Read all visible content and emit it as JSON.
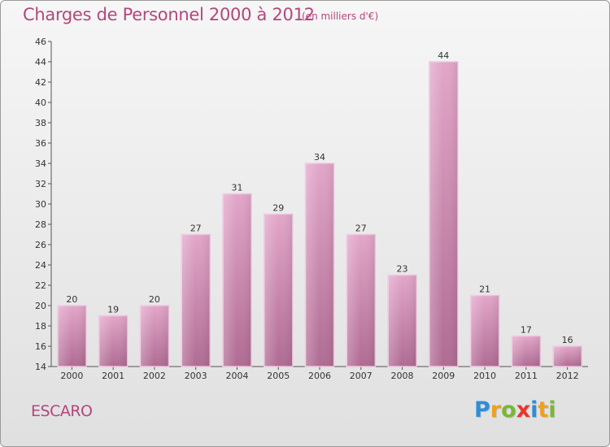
{
  "title": "Charges de Personnel 2000 à 2012",
  "subtitle": "(en milliers d'€)",
  "commune": "ESCARO",
  "logo": {
    "letters": [
      "P",
      "r",
      "o",
      "x",
      "i",
      "t",
      "i"
    ],
    "colors": [
      "#2b8ed8",
      "#f0a01e",
      "#79b833",
      "#e8352e",
      "#2b8ed8",
      "#f0a01e",
      "#79b833"
    ]
  },
  "colors": {
    "bar": "#c873a4",
    "accent": "#b3477d"
  },
  "chart_data": {
    "type": "bar",
    "categories": [
      "2000",
      "2001",
      "2002",
      "2003",
      "2004",
      "2005",
      "2006",
      "2007",
      "2008",
      "2009",
      "2010",
      "2011",
      "2012"
    ],
    "values": [
      20,
      19,
      20,
      27,
      31,
      29,
      34,
      27,
      23,
      44,
      21,
      17,
      16
    ],
    "ylim": [
      14,
      46
    ],
    "yticks": [
      14,
      16,
      18,
      20,
      22,
      24,
      26,
      28,
      30,
      32,
      34,
      36,
      38,
      40,
      42,
      44,
      46
    ],
    "grid": false,
    "xlabel": "",
    "ylabel": ""
  }
}
